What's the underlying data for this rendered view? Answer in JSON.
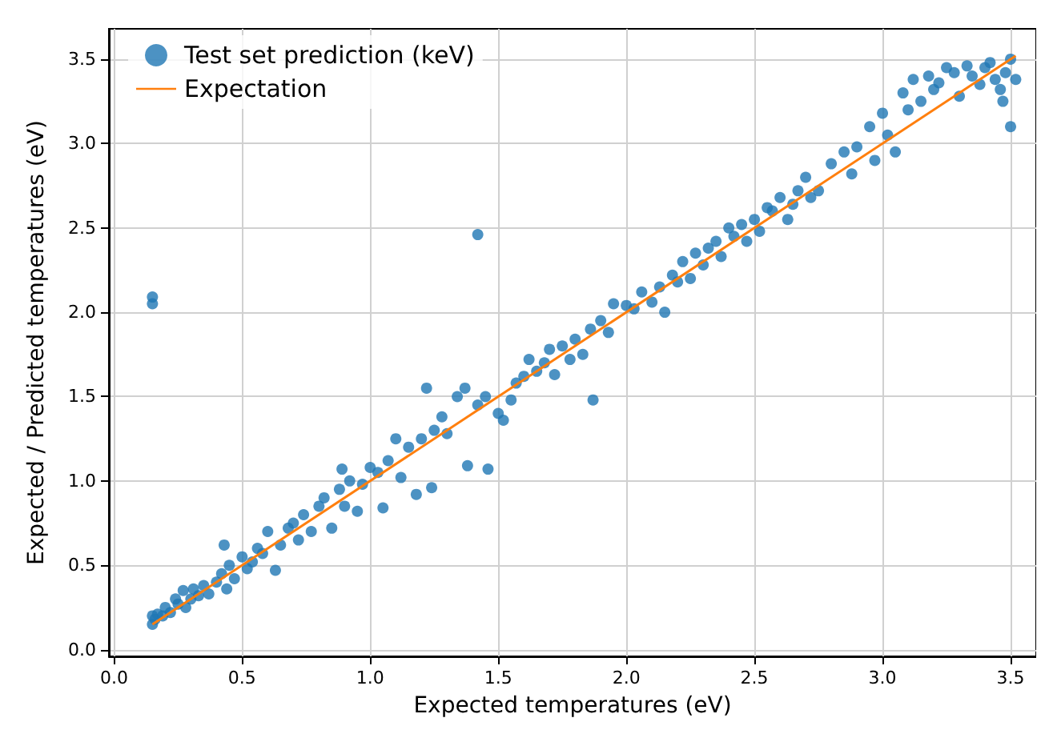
{
  "chart_data": {
    "type": "scatter",
    "xlabel": "Expected temperatures (eV)",
    "ylabel": "Expected / Predicted temperatures (eV)",
    "xlim": [
      -0.02,
      3.6
    ],
    "ylim": [
      -0.04,
      3.68
    ],
    "xticks": [
      {
        "value": 0,
        "label": "0.0"
      },
      0.5,
      {
        "value": 1,
        "label": "1.0"
      },
      1.5,
      {
        "value": 2,
        "label": "2.0"
      },
      2.5,
      {
        "value": 3,
        "label": "3.0"
      },
      3.5
    ],
    "yticks": [
      {
        "value": 0,
        "label": "0.0"
      },
      0.5,
      {
        "value": 1,
        "label": "1.0"
      },
      1.5,
      {
        "value": 2,
        "label": "2.0"
      },
      2.5,
      {
        "value": 3,
        "label": "3.0"
      },
      3.5
    ],
    "grid": true,
    "legend": "top left",
    "marker": "circle",
    "series": [
      {
        "name": "Test set prediction (keV)",
        "color": "#1f77b4",
        "x": [
          0.15,
          0.15,
          0.16,
          0.17,
          0.19,
          0.2,
          0.22,
          0.24,
          0.25,
          0.27,
          0.28,
          0.3,
          0.31,
          0.33,
          0.35,
          0.37,
          0.4,
          0.42,
          0.43,
          0.44,
          0.45,
          0.47,
          0.5,
          0.52,
          0.54,
          0.56,
          0.58,
          0.6,
          0.63,
          0.65,
          0.68,
          0.7,
          0.72,
          0.74,
          0.77,
          0.8,
          0.82,
          0.85,
          0.88,
          0.89,
          0.9,
          0.92,
          0.95,
          0.97,
          1.0,
          1.03,
          1.05,
          1.07,
          1.1,
          1.12,
          1.15,
          1.18,
          1.2,
          1.22,
          1.24,
          1.25,
          1.28,
          1.3,
          1.34,
          1.37,
          1.38,
          1.42,
          1.45,
          1.46,
          1.5,
          1.52,
          1.55,
          1.57,
          1.6,
          1.62,
          1.65,
          1.68,
          1.7,
          1.72,
          1.75,
          1.78,
          1.8,
          1.83,
          1.86,
          1.87,
          1.9,
          1.93,
          1.95,
          2.0,
          2.03,
          2.06,
          2.1,
          2.13,
          2.15,
          2.18,
          2.2,
          2.22,
          2.25,
          2.27,
          2.3,
          2.32,
          2.35,
          2.37,
          2.4,
          2.42,
          2.45,
          2.47,
          2.5,
          2.52,
          2.55,
          2.57,
          2.6,
          2.63,
          2.65,
          2.67,
          2.7,
          2.72,
          2.75,
          2.8,
          2.85,
          2.88,
          2.9,
          2.95,
          2.97,
          3.0,
          3.02,
          3.05,
          3.08,
          3.1,
          3.12,
          3.15,
          3.18,
          3.2,
          3.22,
          3.25,
          3.28,
          3.3,
          3.33,
          3.35,
          3.38,
          3.4,
          3.42,
          3.44,
          3.46,
          3.47,
          3.48,
          3.5,
          3.5,
          3.52,
          1.42,
          0.15,
          0.15
        ],
        "values": [
          0.15,
          0.2,
          0.18,
          0.21,
          0.2,
          0.25,
          0.22,
          0.3,
          0.27,
          0.35,
          0.25,
          0.3,
          0.36,
          0.32,
          0.38,
          0.33,
          0.4,
          0.45,
          0.62,
          0.36,
          0.5,
          0.42,
          0.55,
          0.48,
          0.52,
          0.6,
          0.57,
          0.7,
          0.47,
          0.62,
          0.72,
          0.75,
          0.65,
          0.8,
          0.7,
          0.85,
          0.9,
          0.72,
          0.95,
          1.07,
          0.85,
          1.0,
          0.82,
          0.98,
          1.08,
          1.05,
          0.84,
          1.12,
          1.25,
          1.02,
          1.2,
          0.92,
          1.25,
          1.55,
          0.96,
          1.3,
          1.38,
          1.28,
          1.5,
          1.55,
          1.09,
          1.45,
          1.5,
          1.07,
          1.4,
          1.36,
          1.48,
          1.58,
          1.62,
          1.72,
          1.65,
          1.7,
          1.78,
          1.63,
          1.8,
          1.72,
          1.84,
          1.75,
          1.9,
          1.48,
          1.95,
          1.88,
          2.05,
          2.04,
          2.02,
          2.12,
          2.06,
          2.15,
          2.0,
          2.22,
          2.18,
          2.3,
          2.2,
          2.35,
          2.28,
          2.38,
          2.42,
          2.33,
          2.5,
          2.45,
          2.52,
          2.42,
          2.55,
          2.48,
          2.62,
          2.6,
          2.68,
          2.55,
          2.64,
          2.72,
          2.8,
          2.68,
          2.72,
          2.88,
          2.95,
          2.82,
          2.98,
          3.1,
          2.9,
          3.18,
          3.05,
          2.95,
          3.3,
          3.2,
          3.38,
          3.25,
          3.4,
          3.32,
          3.36,
          3.45,
          3.42,
          3.28,
          3.46,
          3.4,
          3.35,
          3.45,
          3.48,
          3.38,
          3.32,
          3.25,
          3.42,
          3.1,
          3.5,
          3.38,
          2.46,
          2.05,
          2.09
        ]
      },
      {
        "name": "Expectation",
        "color": "#ff7f0e",
        "type": "line",
        "marker": "none",
        "x": [
          0.15,
          3.52
        ],
        "values": [
          0.15,
          3.52
        ]
      }
    ]
  }
}
